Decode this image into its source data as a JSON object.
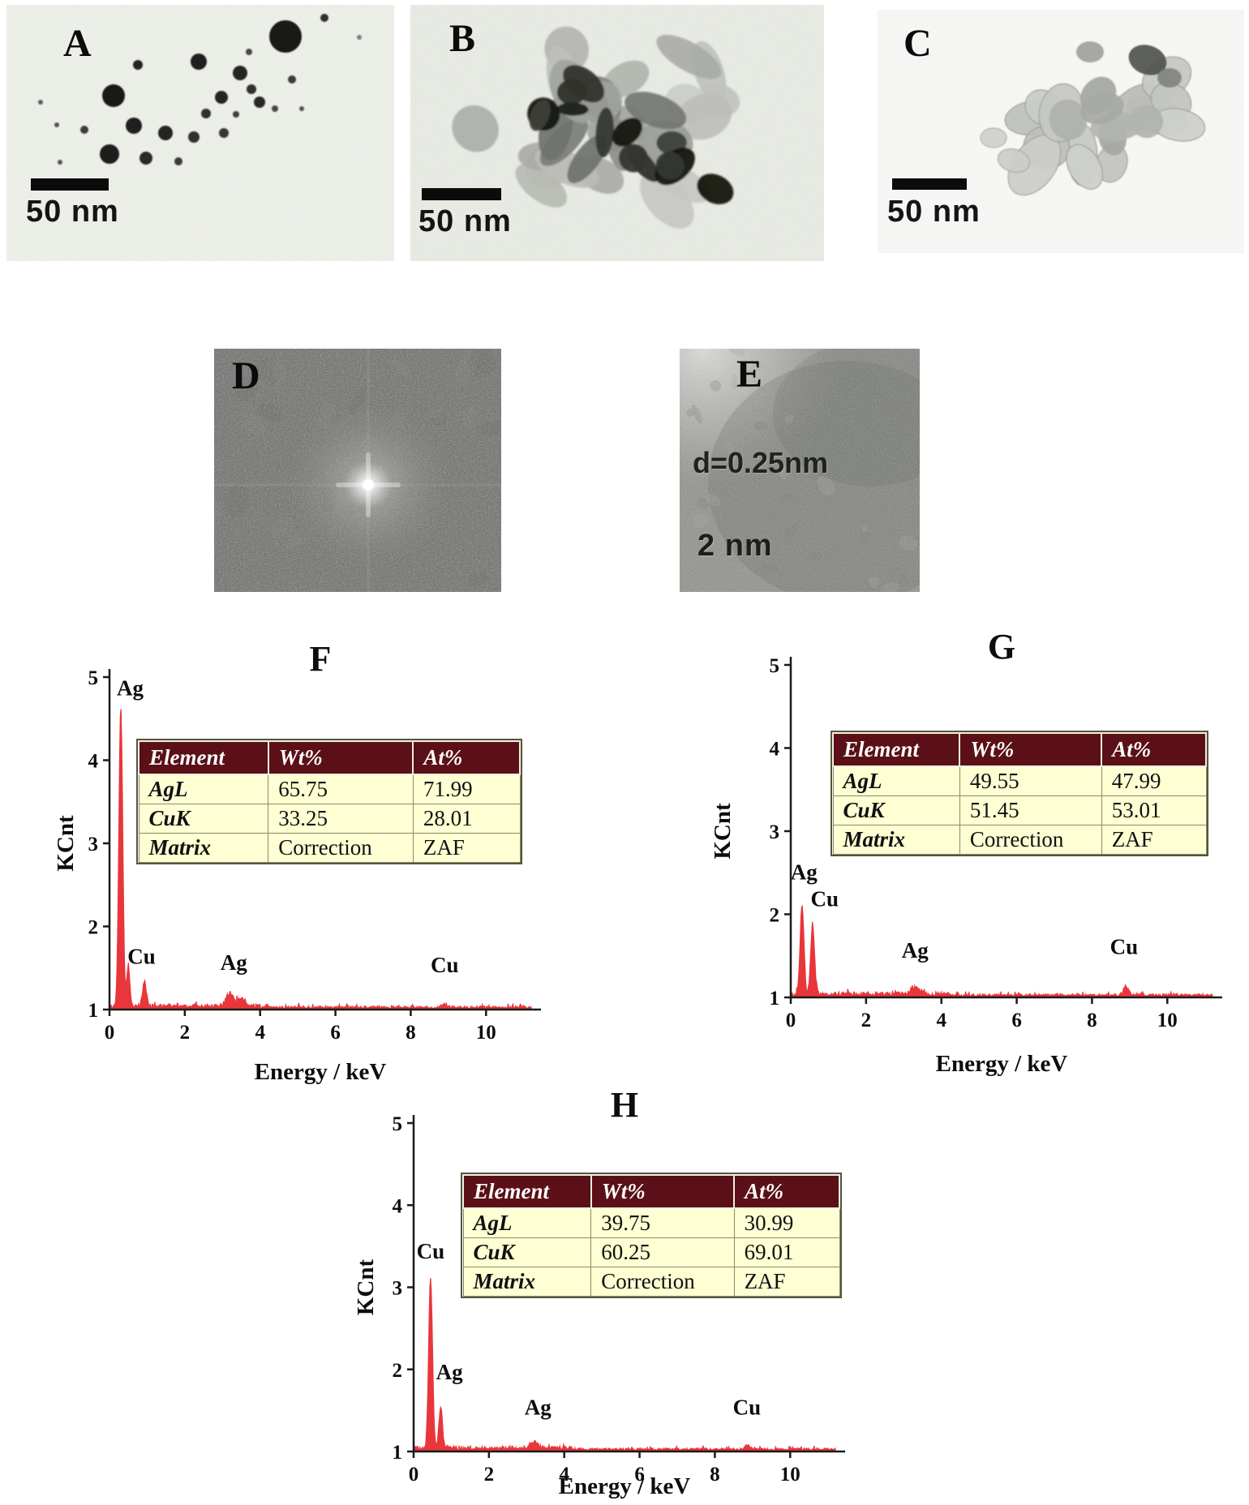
{
  "panels": {
    "A": {
      "label": "A",
      "scale_bar_text": "50 nm"
    },
    "B": {
      "label": "B",
      "scale_bar_text": "50 nm"
    },
    "C": {
      "label": "C",
      "scale_bar_text": "50 nm"
    },
    "D": {
      "label": "D"
    },
    "E": {
      "label": "E",
      "lattice_annotation": "d=0.25nm",
      "scale_bar_text": "2 nm"
    }
  },
  "chart_data": [
    {
      "id": "F",
      "type": "line",
      "title": "F",
      "xlabel": "Energy / keV",
      "ylabel": "KCnt",
      "xlim": [
        0,
        11.2
      ],
      "ylim": [
        1,
        5
      ],
      "xticks": [
        0,
        2,
        4,
        6,
        8,
        10
      ],
      "yticks": [
        1,
        2,
        3,
        4,
        5
      ],
      "line_color": "#e8363b",
      "baseline": 1,
      "peaks": [
        {
          "center": 0.3,
          "height": 3.62,
          "sigma": 0.05,
          "element": "AgL"
        },
        {
          "center": 0.5,
          "height": 0.5,
          "sigma": 0.04,
          "element": "AgL"
        },
        {
          "center": 0.93,
          "height": 0.3,
          "sigma": 0.05,
          "element": "CuL"
        },
        {
          "center": 3.2,
          "height": 0.16,
          "sigma": 0.1,
          "element": "AgL"
        },
        {
          "center": 3.5,
          "height": 0.1,
          "sigma": 0.08,
          "element": "AgL"
        },
        {
          "center": 8.9,
          "height": 0.04,
          "sigma": 0.07,
          "element": "CuK"
        }
      ],
      "annotations": [
        {
          "text": "Ag",
          "x": 0.55,
          "y": 4.78
        },
        {
          "text": "Cu",
          "x": 0.85,
          "y": 1.55
        },
        {
          "text": "Ag",
          "x": 3.3,
          "y": 1.48
        },
        {
          "text": "Cu",
          "x": 8.9,
          "y": 1.45
        }
      ],
      "table": {
        "headers": [
          "Element",
          "Wt%",
          "At%"
        ],
        "rows": [
          [
            "AgL",
            "65.75",
            "71.99"
          ],
          [
            "CuK",
            "33.25",
            "28.01"
          ],
          [
            "Matrix",
            "Correction",
            "ZAF"
          ]
        ]
      }
    },
    {
      "id": "G",
      "type": "line",
      "title": "G",
      "xlabel": "Energy / keV",
      "ylabel": "KCnt",
      "xlim": [
        0,
        11.2
      ],
      "ylim": [
        1,
        5
      ],
      "xticks": [
        0,
        2,
        4,
        6,
        8,
        10
      ],
      "yticks": [
        1,
        2,
        3,
        4,
        5
      ],
      "line_color": "#e8363b",
      "baseline": 1,
      "peaks": [
        {
          "center": 0.3,
          "height": 1.08,
          "sigma": 0.05,
          "element": "AgL"
        },
        {
          "center": 0.58,
          "height": 0.85,
          "sigma": 0.05,
          "element": "CuL"
        },
        {
          "center": 3.3,
          "height": 0.08,
          "sigma": 0.12,
          "element": "AgL"
        },
        {
          "center": 8.9,
          "height": 0.1,
          "sigma": 0.07,
          "element": "CuK"
        }
      ],
      "annotations": [
        {
          "text": "Ag",
          "x": 0.35,
          "y": 2.42
        },
        {
          "text": "Cu",
          "x": 0.9,
          "y": 2.1
        },
        {
          "text": "Ag",
          "x": 3.3,
          "y": 1.48
        },
        {
          "text": "Cu",
          "x": 8.85,
          "y": 1.52
        }
      ],
      "table": {
        "headers": [
          "Element",
          "Wt%",
          "At%"
        ],
        "rows": [
          [
            "AgL",
            "49.55",
            "47.99"
          ],
          [
            "CuK",
            "51.45",
            "53.01"
          ],
          [
            "Matrix",
            "Correction",
            "ZAF"
          ]
        ]
      }
    },
    {
      "id": "H",
      "type": "line",
      "title": "H",
      "xlabel": "Energy / keV",
      "ylabel": "KCnt",
      "xlim": [
        0,
        11.2
      ],
      "ylim": [
        1,
        5
      ],
      "xticks": [
        0,
        2,
        4,
        6,
        8,
        10
      ],
      "yticks": [
        1,
        2,
        3,
        4,
        5
      ],
      "line_color": "#e8363b",
      "baseline": 1,
      "peaks": [
        {
          "center": 0.45,
          "height": 2.08,
          "sigma": 0.05,
          "element": "CuL"
        },
        {
          "center": 0.72,
          "height": 0.52,
          "sigma": 0.045,
          "element": "AgL"
        },
        {
          "center": 3.2,
          "height": 0.07,
          "sigma": 0.12,
          "element": "AgL"
        },
        {
          "center": 8.85,
          "height": 0.05,
          "sigma": 0.07,
          "element": "CuK"
        }
      ],
      "annotations": [
        {
          "text": "Cu",
          "x": 0.45,
          "y": 3.35
        },
        {
          "text": "Ag",
          "x": 0.95,
          "y": 1.88
        },
        {
          "text": "Ag",
          "x": 3.3,
          "y": 1.45
        },
        {
          "text": "Cu",
          "x": 8.85,
          "y": 1.45
        }
      ],
      "table": {
        "headers": [
          "Element",
          "Wt%",
          "At%"
        ],
        "rows": [
          [
            "AgL",
            "39.75",
            "30.99"
          ],
          [
            "CuK",
            "60.25",
            "69.01"
          ],
          [
            "Matrix",
            "Correction",
            "ZAF"
          ]
        ]
      }
    }
  ]
}
